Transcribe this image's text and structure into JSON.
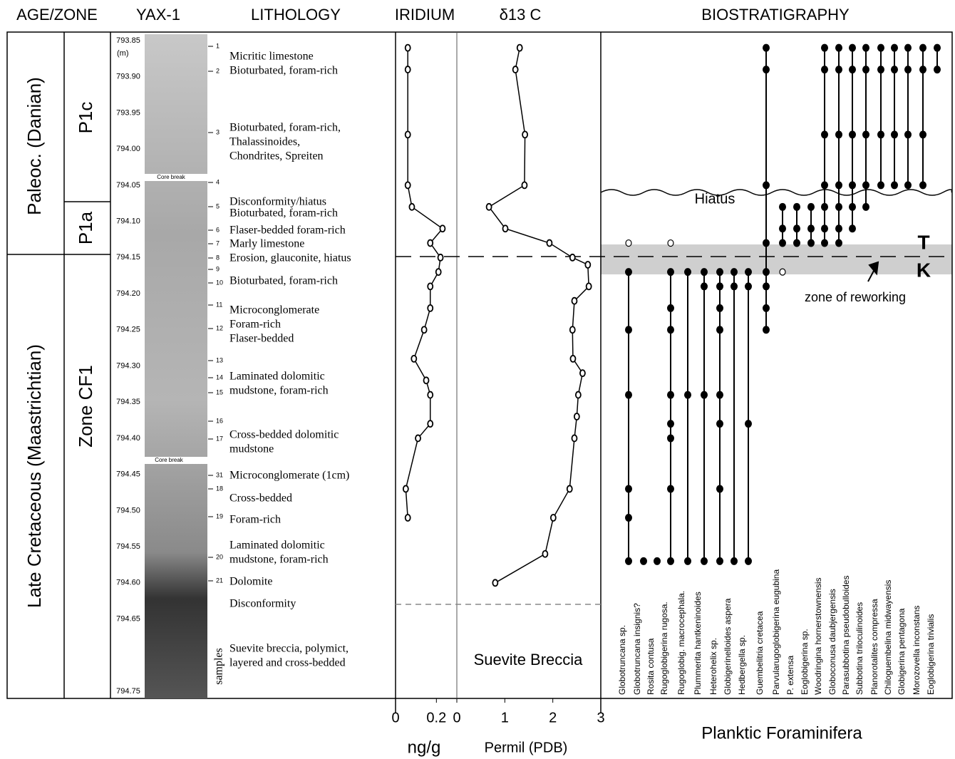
{
  "headers": [
    "AGE/ZONE",
    "YAX-1",
    "LITHOLOGY",
    "IRIDIUM",
    "δ13 C",
    "BIOSTRATIGRAPHY"
  ],
  "age": [
    "Paleoc. (Danian)",
    "Late Cretaceous (Maastrichtian)"
  ],
  "zones": [
    "P1c",
    "P1a",
    "Zone CF1"
  ],
  "core": {
    "breaks": [
      "Core break",
      "Core break"
    ]
  },
  "depth_axis": {
    "ylim": [
      793.85,
      794.75
    ],
    "unit": "(m)",
    "yticks": [
      793.85,
      {
        "value": 793.9,
        "label": "793.90"
      },
      793.95,
      {
        "value": 794.0,
        "label": "794.00"
      },
      794.05,
      {
        "value": 794.1,
        "label": "794.10"
      },
      794.15,
      {
        "value": 794.2,
        "label": "794.20"
      },
      794.25,
      {
        "value": 794.3,
        "label": "794.30"
      },
      794.35,
      {
        "value": 794.4,
        "label": "794.40"
      },
      794.45,
      {
        "value": 794.5,
        "label": "794.50"
      },
      794.55,
      {
        "value": 794.6,
        "label": "794.60"
      },
      794.65,
      794.75
    ]
  },
  "lithology": {
    "samples_label": "samples",
    "samples": [
      "1",
      "2",
      "3",
      "4",
      "5",
      "6",
      "7",
      "8",
      "9",
      "10",
      "11",
      "12",
      "13",
      "14",
      "15",
      "16",
      "17",
      "31",
      "18",
      "19",
      "20",
      "21"
    ],
    "descriptions": [
      [
        "Micritic limestone"
      ],
      [
        "Bioturbated, foram-rich"
      ],
      [
        "Bioturbated, foram-rich,",
        "Thalassinoides,",
        "Chondrites, Spreiten"
      ],
      [
        "Disconformity/hiatus"
      ],
      [
        "Bioturbated, foram-rich"
      ],
      [
        "Flaser-bedded foram-rich"
      ],
      [
        "Marly limestone"
      ],
      [
        "Erosion, glauconite, hiatus"
      ],
      [
        "Bioturbated, foram-rich"
      ],
      [
        "Microconglomerate",
        "Foram-rich",
        "Flaser-bedded"
      ],
      [
        "Laminated dolomitic",
        "mudstone, foram-rich"
      ],
      [
        "Cross-bedded dolomitic",
        "mudstone"
      ],
      [
        "Microconglomerate (1cm)"
      ],
      [
        "Cross-bedded"
      ],
      [
        "Foram-rich"
      ],
      [
        "Laminated dolomitic",
        "mudstone, foram-rich"
      ],
      [
        "Dolomite"
      ],
      [
        "Disconformity"
      ],
      [
        "Suevite breccia, polymict,",
        "layered and cross-bedded"
      ]
    ]
  },
  "chart_data": [
    {
      "type": "line",
      "title": "IRIDIUM",
      "xlabel": "ng/g",
      "xlim": [
        0,
        0.3
      ],
      "xticks": [
        0,
        0.2
      ],
      "color": "#000000",
      "depths": [
        793.86,
        793.89,
        793.98,
        794.05,
        794.08,
        794.11,
        794.13,
        794.15,
        794.17,
        794.19,
        794.22,
        794.25,
        794.29,
        794.32,
        794.34,
        794.38,
        794.4,
        794.47,
        794.51
      ],
      "values": [
        0.06,
        0.06,
        0.06,
        0.06,
        0.08,
        0.23,
        0.17,
        0.22,
        0.21,
        0.17,
        0.17,
        0.14,
        0.09,
        0.15,
        0.17,
        0.17,
        0.11,
        0.05,
        0.06
      ]
    },
    {
      "type": "line",
      "title": "δ13 C",
      "xlabel": "Permil (PDB)",
      "xlim": [
        0,
        3
      ],
      "xticks": [
        0,
        1,
        2,
        3
      ],
      "color": "#000000",
      "annotation": "Suevite Breccia",
      "depths": [
        793.86,
        793.89,
        793.98,
        794.05,
        794.08,
        794.11,
        794.13,
        794.15,
        794.16,
        794.19,
        794.21,
        794.25,
        794.29,
        794.31,
        794.34,
        794.37,
        794.4,
        794.47,
        794.51,
        794.56,
        794.6
      ],
      "values": [
        1.31,
        1.22,
        1.42,
        1.41,
        0.67,
        1.01,
        1.93,
        2.41,
        2.73,
        2.75,
        2.45,
        2.41,
        2.42,
        2.62,
        2.53,
        2.5,
        2.45,
        2.35,
        2.01,
        1.84,
        0.8
      ]
    }
  ],
  "boundary": {
    "top": "T",
    "bottom": "K",
    "hiatus": "Hiatus",
    "reworking": "zone of reworking"
  },
  "biostratigraphy": {
    "title": "BIOSTRATIGRAPHY",
    "xlabel": "Planktic Foraminifera",
    "species": [
      {
        "name": "Globotruncana sp.",
        "occurrences": [
          794.17,
          794.25,
          794.34,
          794.47,
          794.51,
          794.57
        ],
        "reworked": [
          794.13
        ]
      },
      {
        "name": "Globotruncana insignis?",
        "occurrences": [
          794.57
        ],
        "reworked": []
      },
      {
        "name": "Rosita contusa",
        "occurrences": [
          794.57
        ],
        "reworked": []
      },
      {
        "name": "Rugoglobigerina rugosa.",
        "occurrences": [
          794.17,
          794.22,
          794.25,
          794.34,
          794.38,
          794.4,
          794.47,
          794.57
        ],
        "reworked": [
          794.13
        ]
      },
      {
        "name": "Rugoglobig. macrocephala.",
        "occurrences": [
          794.17,
          794.34,
          794.57
        ],
        "reworked": []
      },
      {
        "name": "Plummerita hantkeninoides",
        "occurrences": [
          794.17,
          794.19,
          794.34,
          794.57
        ],
        "reworked": []
      },
      {
        "name": "Heterohelix sp.",
        "occurrences": [
          794.17,
          794.19,
          794.22,
          794.25,
          794.34,
          794.38,
          794.47,
          794.57
        ],
        "reworked": []
      },
      {
        "name": "Globigerinelloides aspera",
        "occurrences": [
          794.17,
          794.19,
          794.57
        ],
        "reworked": []
      },
      {
        "name": "Hedbergella sp.",
        "occurrences": [
          794.17,
          794.19,
          794.38,
          794.57
        ],
        "reworked": []
      },
      {
        "name": "Guembelitria cretacea",
        "occurrences": [
          793.86,
          793.89,
          794.05,
          794.13,
          794.17,
          794.19,
          794.22,
          794.25
        ],
        "reworked": []
      },
      {
        "name": "Parvularugoglobigerina  eugubina",
        "occurrences": [
          794.08,
          794.11,
          794.13
        ],
        "reworked": [
          794.17
        ]
      },
      {
        "name": "P. extensa",
        "occurrences": [
          794.08,
          794.11,
          794.13
        ],
        "reworked": []
      },
      {
        "name": "Eoglobigerina sp.",
        "occurrences": [
          794.08,
          794.11,
          794.13
        ],
        "reworked": []
      },
      {
        "name": "Woodringina hornerstownensis",
        "occurrences": [
          793.86,
          793.89,
          793.98,
          794.05,
          794.08,
          794.11,
          794.13
        ],
        "reworked": []
      },
      {
        "name": "Globoconusa daubjergensis",
        "occurrences": [
          793.86,
          793.89,
          793.98,
          794.05,
          794.08,
          794.11,
          794.13
        ],
        "reworked": []
      },
      {
        "name": "Parasubbotina pseudobulloides",
        "occurrences": [
          793.86,
          793.89,
          793.98,
          794.05,
          794.08,
          794.11
        ],
        "reworked": []
      },
      {
        "name": "Subbotina triloculinoides",
        "occurrences": [
          793.86,
          793.89,
          793.98,
          794.05,
          794.08
        ],
        "reworked": []
      },
      {
        "name": "Planorotalites compressa",
        "occurrences": [
          793.86,
          793.89,
          793.98,
          794.05
        ],
        "reworked": []
      },
      {
        "name": "Chiloguembelina midwayensis",
        "occurrences": [
          793.86,
          793.89,
          793.98,
          794.05
        ],
        "reworked": []
      },
      {
        "name": "Globigerina pentagona",
        "occurrences": [
          793.86,
          793.89,
          793.98,
          794.05
        ],
        "reworked": []
      },
      {
        "name": "Morozovella inconstans",
        "occurrences": [
          793.86,
          793.89,
          793.98,
          794.05
        ],
        "reworked": []
      },
      {
        "name": "Eoglobigerina trivialis",
        "occurrences": [
          793.86,
          793.89
        ],
        "reworked": []
      }
    ]
  }
}
